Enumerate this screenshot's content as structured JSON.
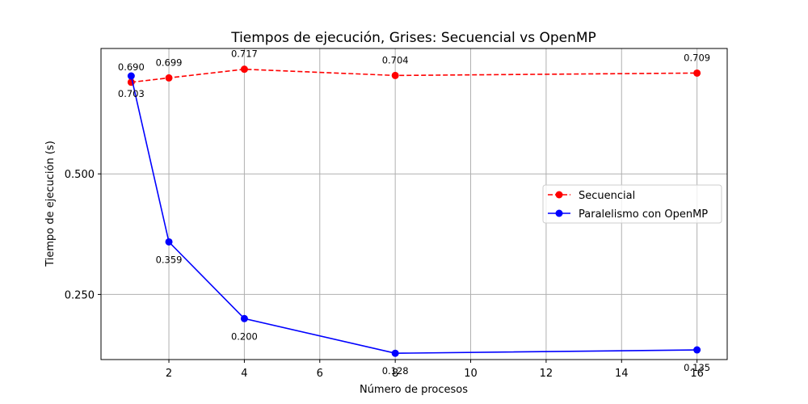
{
  "chart_data": {
    "type": "line",
    "title": "Tiempos de ejecución, Grises: Secuencial vs OpenMP",
    "xlabel": "Número de procesos",
    "ylabel": "Tiempo de ejecución (s)",
    "x": [
      1,
      2,
      4,
      8,
      16
    ],
    "xlim": [
      0.2,
      16.8
    ],
    "ylim": [
      0.115,
      0.76
    ],
    "xticks": [
      2,
      4,
      6,
      8,
      10,
      12,
      14,
      16
    ],
    "yticks": [
      0.25,
      0.5
    ],
    "ytick_labels": [
      "0.250",
      "0.500"
    ],
    "grid": true,
    "legend_position": "center-right",
    "series": [
      {
        "name": "Secuencial",
        "values": [
          0.69,
          0.699,
          0.717,
          0.704,
          0.709
        ],
        "labels": [
          "0.690",
          "0.699",
          "0.717",
          "0.704",
          "0.709"
        ],
        "label_position": [
          "above",
          "above",
          "above",
          "above",
          "above"
        ],
        "color": "#ff0000",
        "dashed": true
      },
      {
        "name": "Paralelismo con OpenMP",
        "values": [
          0.703,
          0.359,
          0.2,
          0.128,
          0.135
        ],
        "labels": [
          "0.703",
          "0.359",
          "0.200",
          "0.128",
          "0.135"
        ],
        "label_position": [
          "below",
          "below",
          "below",
          "below",
          "below"
        ],
        "color": "#0000ff",
        "dashed": false
      }
    ]
  }
}
